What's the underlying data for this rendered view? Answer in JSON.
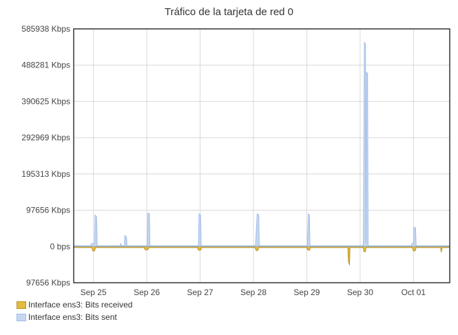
{
  "chart_data": {
    "type": "area",
    "title": "Tráfico de la tarjeta de red 0",
    "y_ticks": [
      "585938 Kbps",
      "488281 Kbps",
      "390625 Kbps",
      "292969 Kbps",
      "195313 Kbps",
      "97656 Kbps",
      "0 bps",
      "97656 Kbps"
    ],
    "y_tick_values": [
      585938,
      488281,
      390625,
      292969,
      195313,
      97656,
      0,
      -97656
    ],
    "ylim": [
      -97656,
      585938
    ],
    "x_ticks": [
      "Sep 25",
      "Sep 26",
      "Sep 27",
      "Sep 28",
      "Sep 29",
      "Sep 30",
      "Oct 01"
    ],
    "x_tick_values": [
      0,
      1,
      2,
      3,
      4,
      5,
      6
    ],
    "xlim": [
      -0.37,
      6.68
    ],
    "grid": true,
    "legend_position": "bottom-left",
    "series": [
      {
        "name": "Interface ens3: Bits received",
        "color": "#e3bb3e",
        "stroke": "#b89322",
        "points": [
          [
            -0.37,
            -3000
          ],
          [
            -0.03,
            -3000
          ],
          [
            -0.01,
            -12000
          ],
          [
            0.02,
            -12000
          ],
          [
            0.04,
            -3000
          ],
          [
            0.95,
            -3000
          ],
          [
            0.97,
            -9000
          ],
          [
            1.02,
            -9000
          ],
          [
            1.04,
            -3000
          ],
          [
            1.95,
            -3000
          ],
          [
            1.97,
            -10000
          ],
          [
            2.01,
            -10000
          ],
          [
            2.03,
            -3000
          ],
          [
            3.03,
            -3000
          ],
          [
            3.05,
            -11000
          ],
          [
            3.08,
            -11000
          ],
          [
            3.1,
            -3000
          ],
          [
            4.0,
            -3000
          ],
          [
            4.02,
            -10000
          ],
          [
            4.05,
            -10000
          ],
          [
            4.07,
            -3000
          ],
          [
            4.77,
            -3000
          ],
          [
            4.78,
            -40000
          ],
          [
            4.8,
            -50000
          ],
          [
            4.81,
            -3000
          ],
          [
            5.06,
            -3000
          ],
          [
            5.07,
            -14000
          ],
          [
            5.1,
            -14000
          ],
          [
            5.11,
            -3000
          ],
          [
            5.98,
            -3000
          ],
          [
            6.0,
            -12000
          ],
          [
            6.03,
            -12000
          ],
          [
            6.05,
            -3000
          ],
          [
            6.51,
            -3000
          ],
          [
            6.52,
            -15000
          ],
          [
            6.54,
            -3000
          ],
          [
            6.68,
            -3000
          ]
        ]
      },
      {
        "name": "Interface ens3: Bits sent",
        "color": "#c6d7f2",
        "stroke": "#a2bce6",
        "points": [
          [
            -0.37,
            2000
          ],
          [
            -0.05,
            2000
          ],
          [
            -0.04,
            8000
          ],
          [
            0.02,
            8000
          ],
          [
            0.03,
            85000
          ],
          [
            0.06,
            80000
          ],
          [
            0.07,
            2000
          ],
          [
            0.5,
            2000
          ],
          [
            0.51,
            8000
          ],
          [
            0.53,
            2000
          ],
          [
            0.58,
            2000
          ],
          [
            0.59,
            30000
          ],
          [
            0.62,
            25000
          ],
          [
            0.63,
            2000
          ],
          [
            1.01,
            2000
          ],
          [
            1.02,
            90000
          ],
          [
            1.05,
            88000
          ],
          [
            1.06,
            2000
          ],
          [
            1.96,
            2000
          ],
          [
            1.97,
            5000
          ],
          [
            1.98,
            88000
          ],
          [
            2.01,
            85000
          ],
          [
            2.02,
            2000
          ],
          [
            3.03,
            2000
          ],
          [
            3.04,
            5000
          ],
          [
            3.07,
            88000
          ],
          [
            3.1,
            85000
          ],
          [
            3.11,
            2000
          ],
          [
            4.0,
            2000
          ],
          [
            4.01,
            5000
          ],
          [
            4.03,
            88000
          ],
          [
            4.05,
            85000
          ],
          [
            4.06,
            2000
          ],
          [
            5.05,
            2000
          ],
          [
            5.06,
            8000
          ],
          [
            5.08,
            550000
          ],
          [
            5.1,
            545000
          ],
          [
            5.11,
            10000
          ],
          [
            5.12,
            470000
          ],
          [
            5.14,
            465000
          ],
          [
            5.15,
            2000
          ],
          [
            5.96,
            2000
          ],
          [
            5.97,
            8000
          ],
          [
            6.0,
            8000
          ],
          [
            6.01,
            52000
          ],
          [
            6.04,
            50000
          ],
          [
            6.05,
            2000
          ],
          [
            6.68,
            2000
          ]
        ]
      }
    ]
  }
}
